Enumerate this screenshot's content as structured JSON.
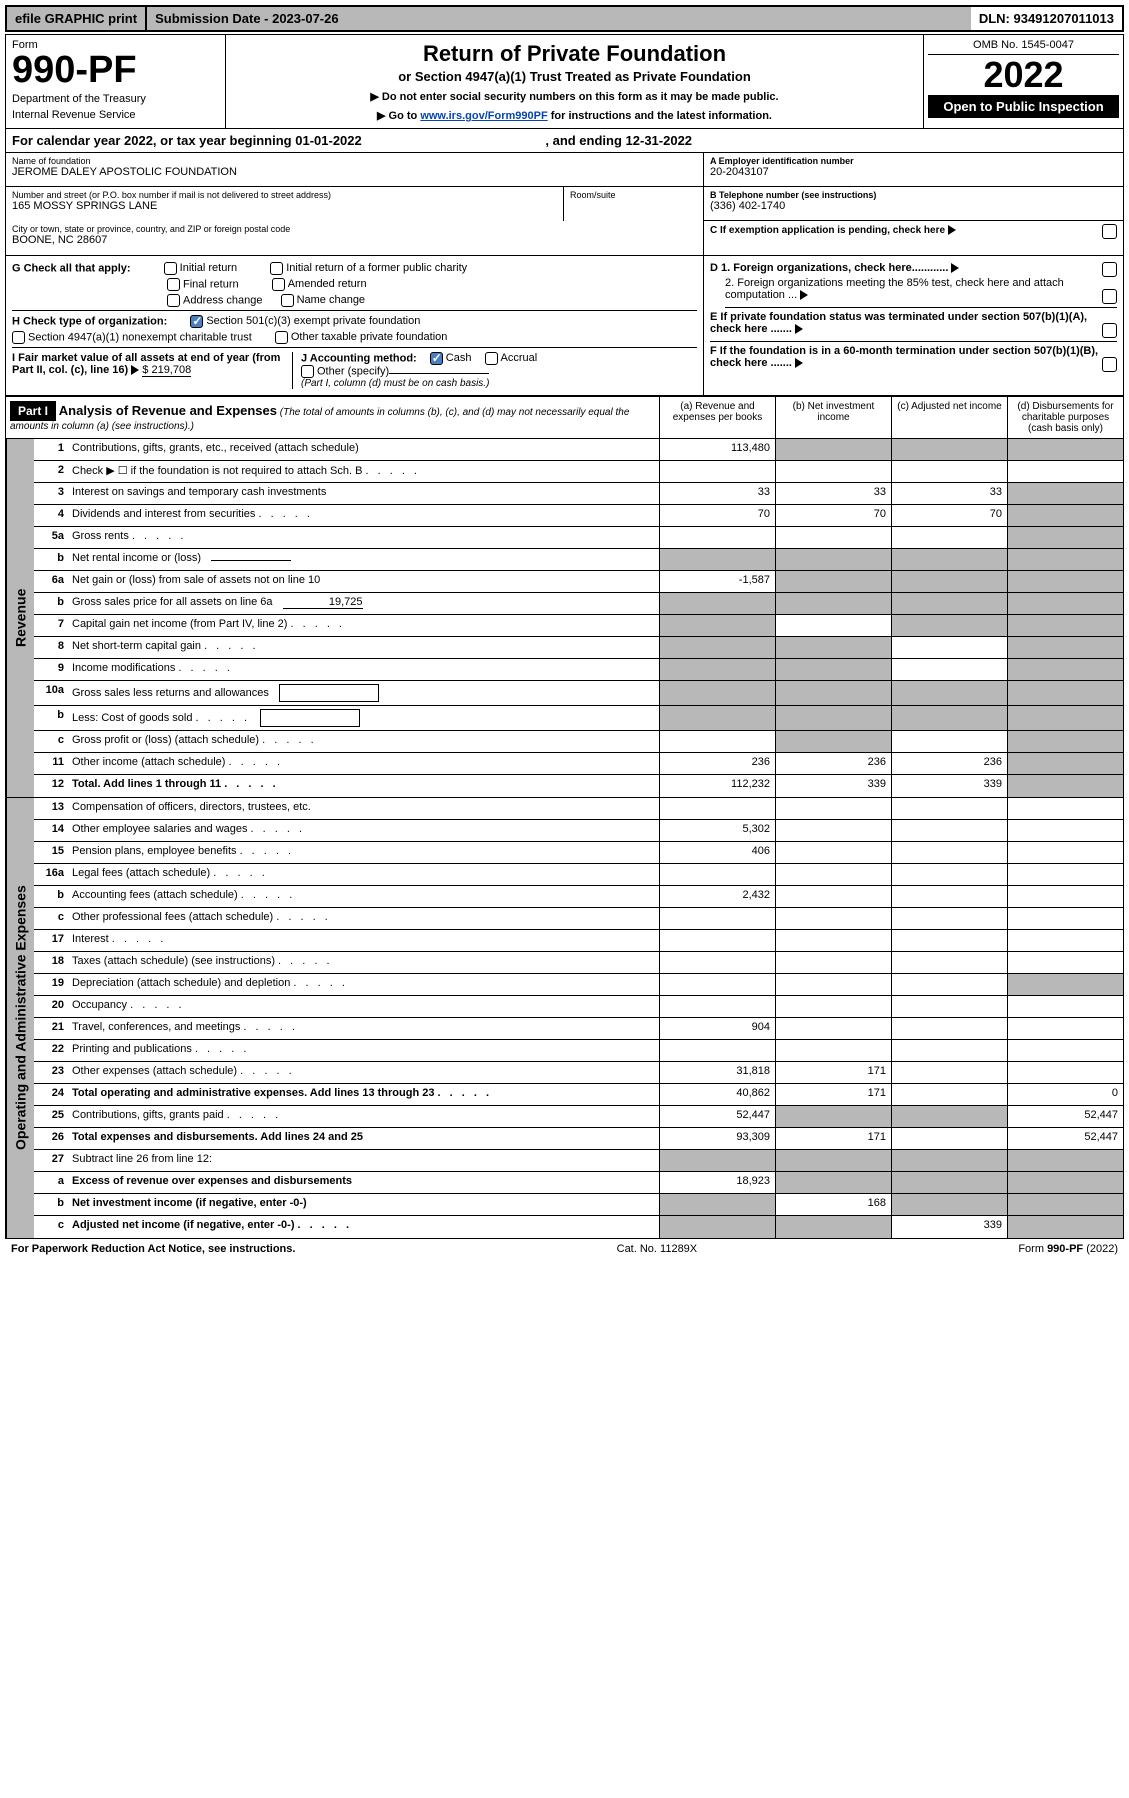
{
  "topbar": {
    "efile": "efile GRAPHIC print",
    "submission": "Submission Date - 2023-07-26",
    "dln": "DLN: 93491207011013"
  },
  "header": {
    "form_label": "Form",
    "form_number": "990-PF",
    "dept1": "Department of the Treasury",
    "dept2": "Internal Revenue Service",
    "title": "Return of Private Foundation",
    "subtitle": "or Section 4947(a)(1) Trust Treated as Private Foundation",
    "note1": "▶ Do not enter social security numbers on this form as it may be made public.",
    "note2_pre": "▶ Go to ",
    "note2_link": "www.irs.gov/Form990PF",
    "note2_post": " for instructions and the latest information.",
    "omb": "OMB No. 1545-0047",
    "year": "2022",
    "open": "Open to Public Inspection"
  },
  "calyear": {
    "text_pre": "For calendar year 2022, or tax year beginning ",
    "begin": "01-01-2022",
    "text_mid": " , and ending ",
    "end": "12-31-2022"
  },
  "foundation": {
    "name_label": "Name of foundation",
    "name": "JEROME DALEY APOSTOLIC FOUNDATION",
    "addr_label": "Number and street (or P.O. box number if mail is not delivered to street address)",
    "addr": "165 MOSSY SPRINGS LANE",
    "room_label": "Room/suite",
    "city_label": "City or town, state or province, country, and ZIP or foreign postal code",
    "city": "BOONE, NC  28607",
    "ein_label": "A Employer identification number",
    "ein": "20-2043107",
    "phone_label": "B Telephone number (see instructions)",
    "phone": "(336) 402-1740",
    "c_label": "C If exemption application is pending, check here"
  },
  "checks": {
    "g_label": "G Check all that apply:",
    "g1": "Initial return",
    "g2": "Initial return of a former public charity",
    "g3": "Final return",
    "g4": "Amended return",
    "g5": "Address change",
    "g6": "Name change",
    "h_label": "H Check type of organization:",
    "h1": "Section 501(c)(3) exempt private foundation",
    "h2": "Section 4947(a)(1) nonexempt charitable trust",
    "h3": "Other taxable private foundation",
    "i_label": "I Fair market value of all assets at end of year (from Part II, col. (c), line 16)",
    "i_val": "$  219,708",
    "j_label": "J Accounting method:",
    "j1": "Cash",
    "j2": "Accrual",
    "j3": "Other (specify)",
    "j_note": "(Part I, column (d) must be on cash basis.)",
    "d1": "D 1. Foreign organizations, check here............",
    "d2": "2. Foreign organizations meeting the 85% test, check here and attach computation ...",
    "e": "E  If private foundation status was terminated under section 507(b)(1)(A), check here .......",
    "f": "F  If the foundation is in a 60-month termination under section 507(b)(1)(B), check here ......."
  },
  "part1": {
    "label": "Part I",
    "title": "Analysis of Revenue and Expenses",
    "title_note": "(The total of amounts in columns (b), (c), and (d) may not necessarily equal the amounts in column (a) (see instructions).)",
    "col_a": "(a)   Revenue and expenses per books",
    "col_b": "(b)   Net investment income",
    "col_c": "(c)   Adjusted net income",
    "col_d": "(d)   Disbursements for charitable purposes (cash basis only)"
  },
  "sections": {
    "revenue": "Revenue",
    "expenses": "Operating and Administrative Expenses"
  },
  "rows": [
    {
      "n": "1",
      "label": "Contributions, gifts, grants, etc., received (attach schedule)",
      "a": "113,480",
      "b": "",
      "c": "",
      "d": "",
      "greys": [
        "b",
        "c",
        "d"
      ]
    },
    {
      "n": "2",
      "label": "Check ▶ ☐ if the foundation is not required to attach Sch. B",
      "dots": true,
      "nocells": true
    },
    {
      "n": "3",
      "label": "Interest on savings and temporary cash investments",
      "a": "33",
      "b": "33",
      "c": "33",
      "d": "",
      "greys": [
        "d"
      ]
    },
    {
      "n": "4",
      "label": "Dividends and interest from securities",
      "dots": true,
      "a": "70",
      "b": "70",
      "c": "70",
      "d": "",
      "greys": [
        "d"
      ]
    },
    {
      "n": "5a",
      "label": "Gross rents",
      "dots": true,
      "a": "",
      "b": "",
      "c": "",
      "d": "",
      "greys": [
        "d"
      ]
    },
    {
      "n": "b",
      "label": "Net rental income or (loss)",
      "inline": "",
      "greys": [
        "a",
        "b",
        "c",
        "d"
      ],
      "allgrey": true
    },
    {
      "n": "6a",
      "label": "Net gain or (loss) from sale of assets not on line 10",
      "a": "-1,587",
      "b": "",
      "c": "",
      "d": "",
      "greys": [
        "b",
        "c",
        "d"
      ]
    },
    {
      "n": "b",
      "label": "Gross sales price for all assets on line 6a",
      "inline": "19,725",
      "greys": [
        "a",
        "b",
        "c",
        "d"
      ],
      "allgrey": true
    },
    {
      "n": "7",
      "label": "Capital gain net income (from Part IV, line 2)",
      "dots": true,
      "a": "",
      "b": "",
      "c": "",
      "d": "",
      "greys": [
        "a",
        "c",
        "d"
      ]
    },
    {
      "n": "8",
      "label": "Net short-term capital gain",
      "dots": true,
      "a": "",
      "b": "",
      "c": "",
      "d": "",
      "greys": [
        "a",
        "b",
        "d"
      ]
    },
    {
      "n": "9",
      "label": "Income modifications",
      "dots": true,
      "a": "",
      "b": "",
      "c": "",
      "d": "",
      "greys": [
        "a",
        "b",
        "d"
      ]
    },
    {
      "n": "10a",
      "label": "Gross sales less returns and allowances",
      "box": true,
      "greys": [
        "a",
        "b",
        "c",
        "d"
      ],
      "allgrey": true
    },
    {
      "n": "b",
      "label": "Less: Cost of goods sold",
      "dots": true,
      "box": true,
      "greys": [
        "a",
        "b",
        "c",
        "d"
      ],
      "allgrey": true
    },
    {
      "n": "c",
      "label": "Gross profit or (loss) (attach schedule)",
      "dots": true,
      "a": "",
      "b": "",
      "c": "",
      "d": "",
      "greys": [
        "b",
        "d"
      ]
    },
    {
      "n": "11",
      "label": "Other income (attach schedule)",
      "dots": true,
      "a": "236",
      "b": "236",
      "c": "236",
      "d": "",
      "greys": [
        "d"
      ]
    },
    {
      "n": "12",
      "label": "Total. Add lines 1 through 11",
      "dots": true,
      "bold": true,
      "a": "112,232",
      "b": "339",
      "c": "339",
      "d": "",
      "greys": [
        "d"
      ]
    }
  ],
  "exp_rows": [
    {
      "n": "13",
      "label": "Compensation of officers, directors, trustees, etc.",
      "a": "",
      "b": "",
      "c": "",
      "d": ""
    },
    {
      "n": "14",
      "label": "Other employee salaries and wages",
      "dots": true,
      "a": "5,302",
      "b": "",
      "c": "",
      "d": ""
    },
    {
      "n": "15",
      "label": "Pension plans, employee benefits",
      "dots": true,
      "a": "406",
      "b": "",
      "c": "",
      "d": ""
    },
    {
      "n": "16a",
      "label": "Legal fees (attach schedule)",
      "dots": true,
      "a": "",
      "b": "",
      "c": "",
      "d": ""
    },
    {
      "n": "b",
      "label": "Accounting fees (attach schedule)",
      "dots": true,
      "a": "2,432",
      "b": "",
      "c": "",
      "d": ""
    },
    {
      "n": "c",
      "label": "Other professional fees (attach schedule)",
      "dots": true,
      "a": "",
      "b": "",
      "c": "",
      "d": ""
    },
    {
      "n": "17",
      "label": "Interest",
      "dots": true,
      "a": "",
      "b": "",
      "c": "",
      "d": ""
    },
    {
      "n": "18",
      "label": "Taxes (attach schedule) (see instructions)",
      "dots": true,
      "a": "",
      "b": "",
      "c": "",
      "d": ""
    },
    {
      "n": "19",
      "label": "Depreciation (attach schedule) and depletion",
      "dots": true,
      "a": "",
      "b": "",
      "c": "",
      "d": "",
      "greys": [
        "d"
      ]
    },
    {
      "n": "20",
      "label": "Occupancy",
      "dots": true,
      "a": "",
      "b": "",
      "c": "",
      "d": ""
    },
    {
      "n": "21",
      "label": "Travel, conferences, and meetings",
      "dots": true,
      "a": "904",
      "b": "",
      "c": "",
      "d": ""
    },
    {
      "n": "22",
      "label": "Printing and publications",
      "dots": true,
      "a": "",
      "b": "",
      "c": "",
      "d": ""
    },
    {
      "n": "23",
      "label": "Other expenses (attach schedule)",
      "dots": true,
      "a": "31,818",
      "b": "171",
      "c": "",
      "d": ""
    },
    {
      "n": "24",
      "label": "Total operating and administrative expenses. Add lines 13 through 23",
      "dots": true,
      "bold": true,
      "a": "40,862",
      "b": "171",
      "c": "",
      "d": "0"
    },
    {
      "n": "25",
      "label": "Contributions, gifts, grants paid",
      "dots": true,
      "a": "52,447",
      "b": "",
      "c": "",
      "d": "52,447",
      "greys": [
        "b",
        "c"
      ]
    },
    {
      "n": "26",
      "label": "Total expenses and disbursements. Add lines 24 and 25",
      "bold": true,
      "a": "93,309",
      "b": "171",
      "c": "",
      "d": "52,447"
    },
    {
      "n": "27",
      "label": "Subtract line 26 from line 12:",
      "greys": [
        "a",
        "b",
        "c",
        "d"
      ],
      "allgrey": true
    },
    {
      "n": "a",
      "label": "Excess of revenue over expenses and disbursements",
      "bold": true,
      "a": "18,923",
      "b": "",
      "c": "",
      "d": "",
      "greys": [
        "b",
        "c",
        "d"
      ]
    },
    {
      "n": "b",
      "label": "Net investment income (if negative, enter -0-)",
      "bold": true,
      "a": "",
      "b": "168",
      "c": "",
      "d": "",
      "greys": [
        "a",
        "c",
        "d"
      ]
    },
    {
      "n": "c",
      "label": "Adjusted net income (if negative, enter -0-)",
      "dots": true,
      "bold": true,
      "a": "",
      "b": "",
      "c": "339",
      "d": "",
      "greys": [
        "a",
        "b",
        "d"
      ]
    }
  ],
  "footer": {
    "left": "For Paperwork Reduction Act Notice, see instructions.",
    "mid": "Cat. No. 11289X",
    "right": "Form 990-PF (2022)"
  }
}
